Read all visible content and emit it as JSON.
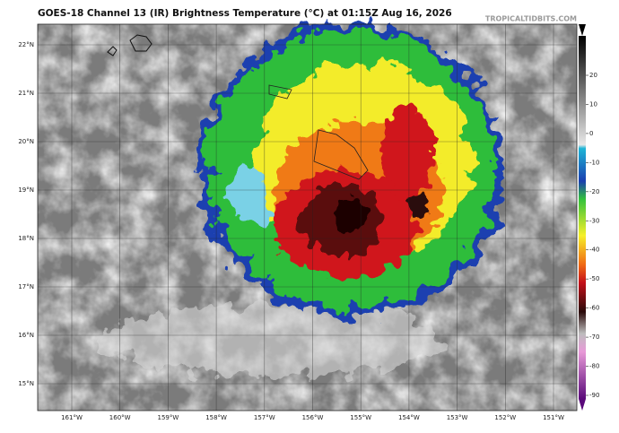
{
  "header": {
    "title": "GOES-18 Channel 13 (IR) Brightness Temperature (°C) at 01:15Z Aug 16, 2026",
    "credit": "TROPICALTIDBITS.COM"
  },
  "map": {
    "lat_labels": [
      "22°N",
      "21°N",
      "20°N",
      "19°N",
      "18°N",
      "17°N",
      "16°N",
      "15°N"
    ],
    "lon_labels": [
      "161°W",
      "160°W",
      "159°W",
      "158°W",
      "157°W",
      "156°W",
      "155°W",
      "154°W",
      "153°W",
      "152°W",
      "151°W"
    ]
  },
  "colorbar": {
    "ticks": [
      20,
      10,
      0,
      -10,
      -20,
      -30,
      -40,
      -50,
      -60,
      -70,
      -80,
      -90
    ]
  }
}
